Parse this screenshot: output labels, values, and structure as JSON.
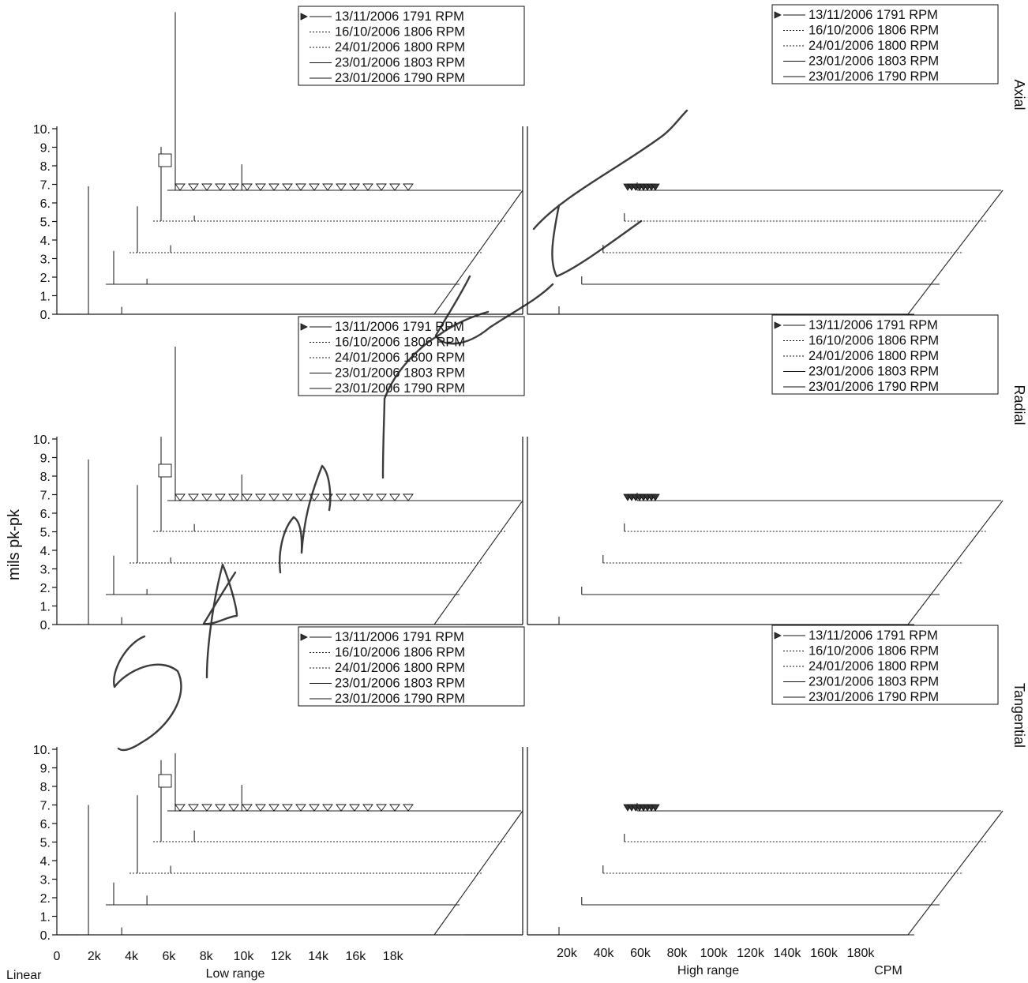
{
  "chart_data": {
    "type": "line",
    "y_axis_label": "mils pk-pk",
    "y_ticks": [
      "0.",
      "1.",
      "2.",
      "3.",
      "4.",
      "5.",
      "6.",
      "7.",
      "8.",
      "9.",
      "10."
    ],
    "ylim": [
      0,
      10
    ],
    "scale_label": "Linear",
    "low_range": {
      "label": "Low range",
      "x_ticks": [
        "0",
        "2k",
        "4k",
        "6k",
        "8k",
        "10k",
        "12k",
        "14k",
        "16k",
        "18k"
      ],
      "xlim": [
        0,
        20000
      ]
    },
    "high_range": {
      "label": "High range",
      "x_ticks": [
        "20k",
        "40k",
        "60k",
        "80k",
        "100k",
        "120k",
        "140k",
        "160k",
        "180k"
      ],
      "xlim": [
        0,
        200000
      ]
    },
    "x_unit": "CPM",
    "legend": [
      "13/11/2006 1791 RPM",
      "16/10/2006 1806 RPM",
      "24/01/2006 1800 RPM",
      "23/01/2006 1803 RPM",
      "23/01/2006 1790 RPM"
    ],
    "panels": [
      {
        "name": "Axial",
        "low_peaks": [
          [
            {
              "x": 1800,
              "y": 9.6
            },
            {
              "x": 5400,
              "y": 1.4
            }
          ],
          [
            {
              "x": 1800,
              "y": 4.0
            },
            {
              "x": 3600,
              "y": 0.3
            }
          ],
          [
            {
              "x": 1800,
              "y": 2.5
            },
            {
              "x": 3600,
              "y": 0.4
            }
          ],
          [
            {
              "x": 1800,
              "y": 1.8
            },
            {
              "x": 3600,
              "y": 0.3
            }
          ],
          [
            {
              "x": 1800,
              "y": 6.9
            },
            {
              "x": 3600,
              "y": 0.4
            }
          ]
        ]
      },
      {
        "name": "Radial",
        "low_peaks": [
          [
            {
              "x": 1800,
              "y": 8.3
            },
            {
              "x": 5400,
              "y": 1.4
            }
          ],
          [
            {
              "x": 1800,
              "y": 5.1
            },
            {
              "x": 3600,
              "y": 0.4
            }
          ],
          [
            {
              "x": 1800,
              "y": 4.2
            },
            {
              "x": 3600,
              "y": 0.3
            }
          ],
          [
            {
              "x": 1800,
              "y": 2.1
            },
            {
              "x": 3600,
              "y": 0.3
            }
          ],
          [
            {
              "x": 1800,
              "y": 8.9
            },
            {
              "x": 3600,
              "y": 0.4
            }
          ]
        ]
      },
      {
        "name": "Tangential",
        "low_peaks": [
          [
            {
              "x": 1800,
              "y": 3.1
            },
            {
              "x": 5400,
              "y": 1.4
            }
          ],
          [
            {
              "x": 1800,
              "y": 4.4
            },
            {
              "x": 3600,
              "y": 0.6
            }
          ],
          [
            {
              "x": 1800,
              "y": 4.2
            },
            {
              "x": 3600,
              "y": 0.4
            }
          ],
          [
            {
              "x": 1800,
              "y": 1.2
            },
            {
              "x": 3600,
              "y": 0.5
            }
          ],
          [
            {
              "x": 1800,
              "y": 7.0
            },
            {
              "x": 3600,
              "y": 0.4
            }
          ]
        ]
      }
    ],
    "grid": false,
    "legend_position": "top-right of each panel"
  },
  "colors": {
    "ink": "#111111",
    "background": "#ffffff"
  },
  "watermark": "SAMPLE (handwritten signature)"
}
